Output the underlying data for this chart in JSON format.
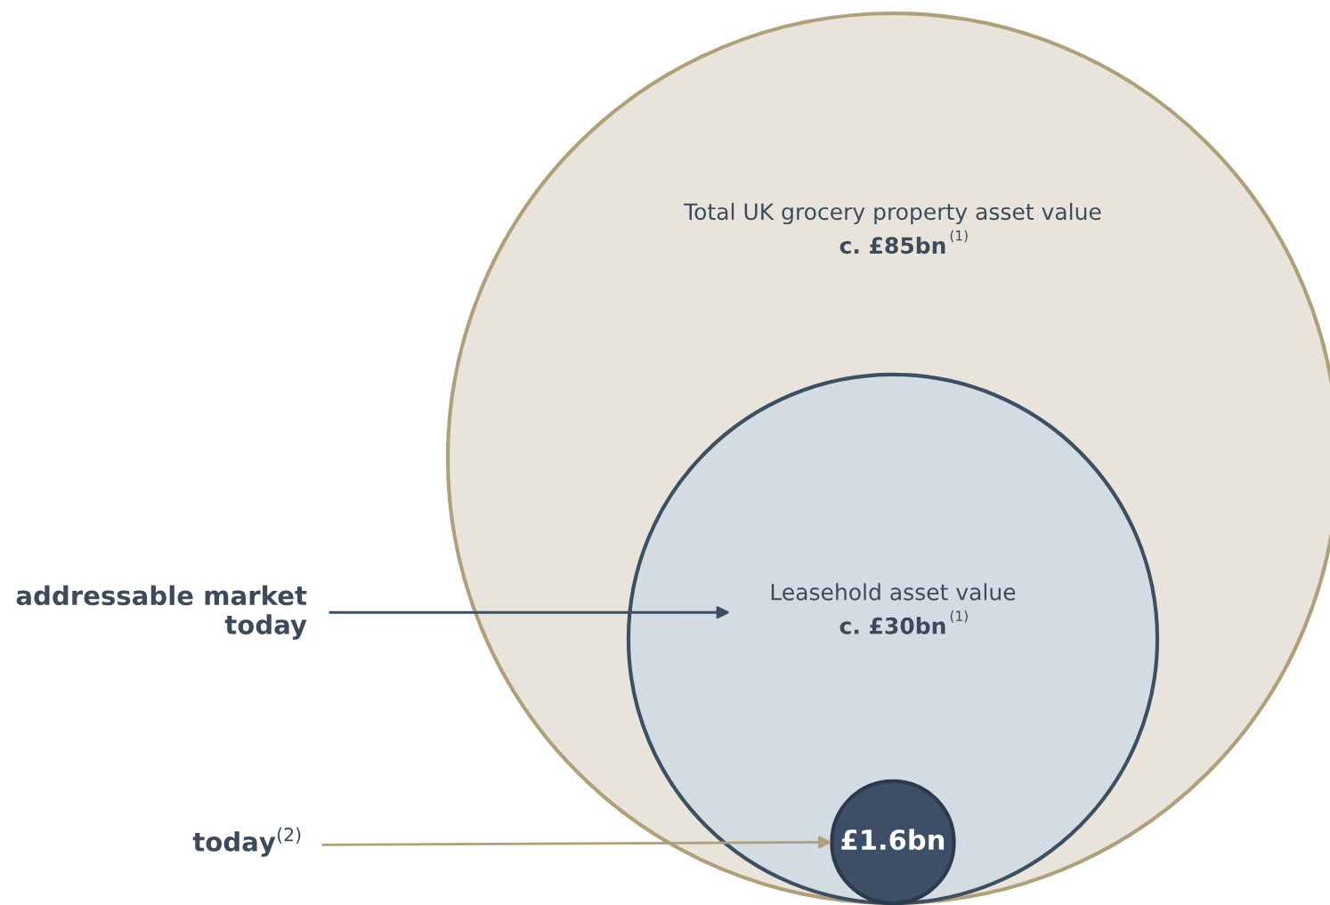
{
  "chart_data": {
    "type": "other",
    "categories": [
      "Total UK grocery property asset value",
      "Leasehold asset value",
      null
    ],
    "values": [
      85,
      30,
      1.6
    ],
    "value_labels": [
      "c. £85bn",
      "c. £30bn",
      "£1.6bn"
    ],
    "colors": [
      "#e8e4dc",
      "#d3dbe3",
      "#3d4f66"
    ],
    "annotations": [
      "(1)",
      "(1)",
      "addressable market today",
      "today$^{(2)}$"
    ]
  }
}
